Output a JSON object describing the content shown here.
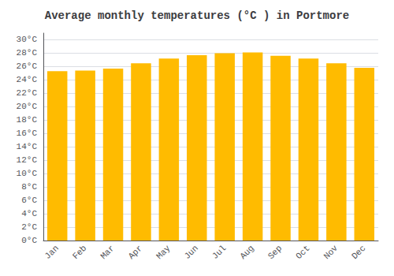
{
  "chart_data": {
    "type": "bar",
    "title": "Average monthly temperatures (°C ) in Portmore",
    "categories": [
      "Jan",
      "Feb",
      "Mar",
      "Apr",
      "May",
      "Jun",
      "Jul",
      "Aug",
      "Sep",
      "Oct",
      "Nov",
      "Dec"
    ],
    "values": [
      25.3,
      25.4,
      25.7,
      26.5,
      27.2,
      27.7,
      28.0,
      28.1,
      27.6,
      27.2,
      26.5,
      25.8
    ],
    "color": "#FFBB00",
    "ylim": [
      0,
      31
    ],
    "yticks": [
      {
        "value": 0,
        "label": "0°C"
      },
      {
        "value": 2,
        "label": "2°C"
      },
      {
        "value": 4,
        "label": "4°C"
      },
      {
        "value": 6,
        "label": "6°C"
      },
      {
        "value": 8,
        "label": "8°C"
      },
      {
        "value": 10,
        "label": "10°C"
      },
      {
        "value": 12,
        "label": "12°C"
      },
      {
        "value": 14,
        "label": "14°C"
      },
      {
        "value": 16,
        "label": "16°C"
      },
      {
        "value": 18,
        "label": "18°C"
      },
      {
        "value": 20,
        "label": "20°C"
      },
      {
        "value": 22,
        "label": "22°C"
      },
      {
        "value": 24,
        "label": "24°C"
      },
      {
        "value": 26,
        "label": "26°C"
      },
      {
        "value": 28,
        "label": "28°C"
      },
      {
        "value": 30,
        "label": "30°C"
      }
    ],
    "grid": true
  }
}
